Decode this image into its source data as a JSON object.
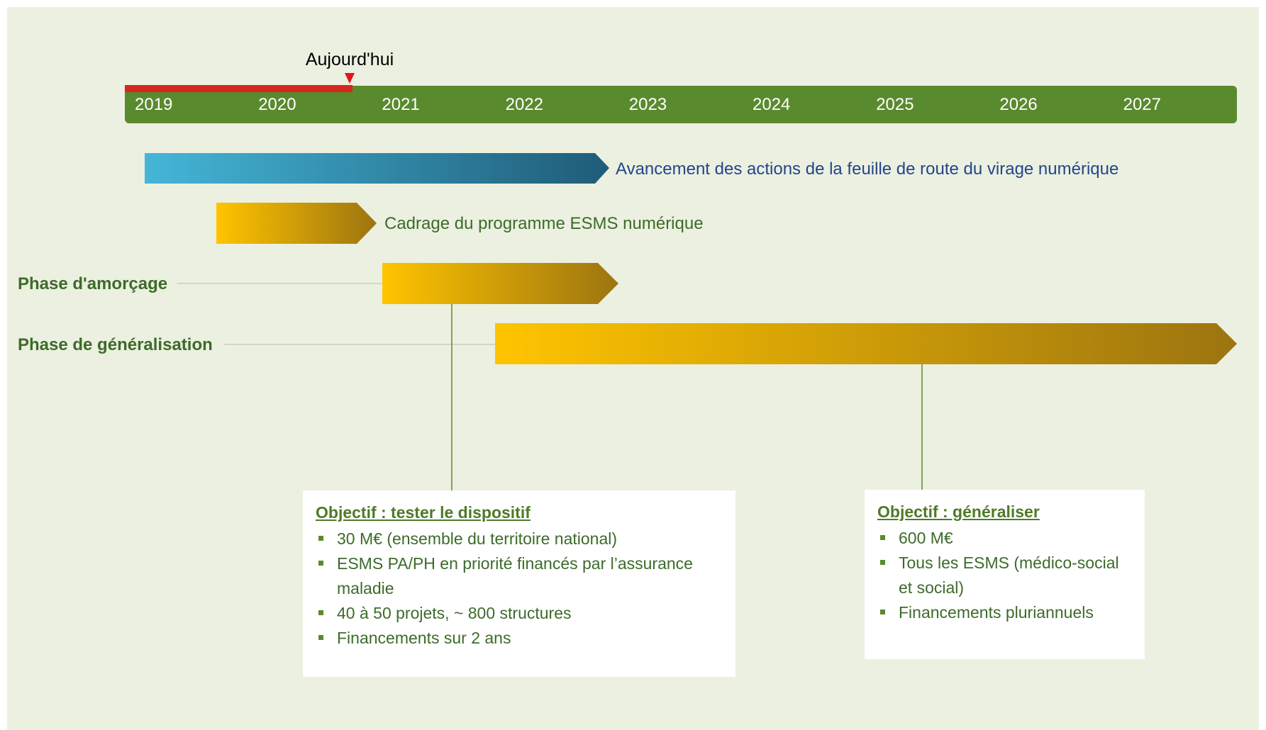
{
  "today": {
    "label": "Aujourd'hui"
  },
  "years": [
    "2019",
    "2020",
    "2021",
    "2022",
    "2023",
    "2024",
    "2025",
    "2026",
    "2027"
  ],
  "tracks": [
    {
      "label": "Avancement des actions de la feuille de route du virage numérique"
    },
    {
      "label": "Cadrage du programme ESMS numérique"
    }
  ],
  "phases": [
    {
      "label": "Phase d'amorçage"
    },
    {
      "label": "Phase de généralisation"
    }
  ],
  "objectives": [
    {
      "title": "Objectif : tester le dispositif",
      "items": [
        "30 M€ (ensemble du territoire national)",
        "ESMS PA/PH en priorité financés par l’assurance maladie",
        "40 à 50 projets, ~ 800 structures",
        "Financements sur 2 ans"
      ]
    },
    {
      "title": "Objectif : généraliser",
      "items": [
        "600 M€",
        "Tous les ESMS (médico-social et social)",
        "Financements pluriannuels"
      ]
    }
  ]
}
